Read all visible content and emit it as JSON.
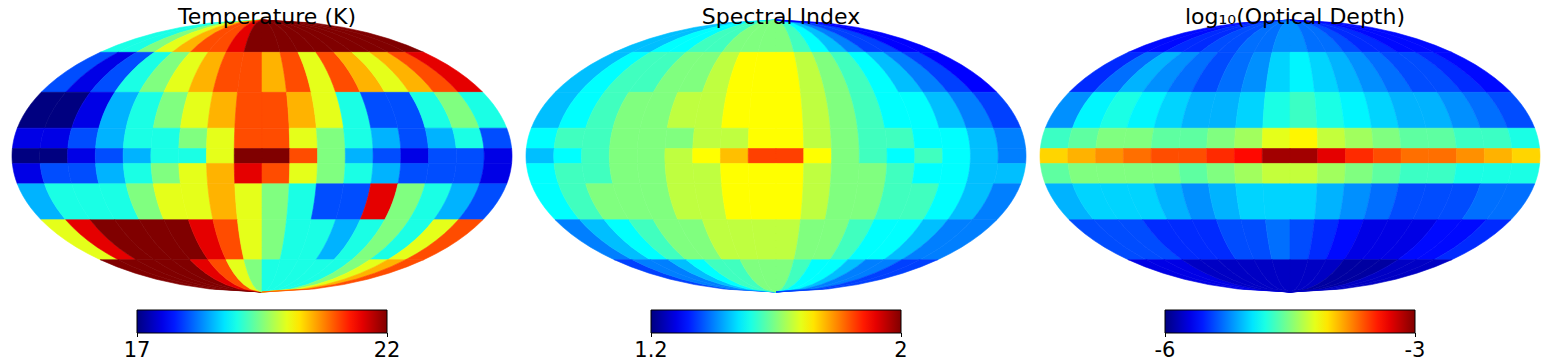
{
  "chart_data": [
    {
      "type": "heatmap",
      "title": "Temperature (K)",
      "lon_edges": [
        180,
        160,
        140,
        120,
        100,
        80,
        60,
        40,
        20,
        0,
        -20,
        -40,
        -60,
        -80,
        -100,
        -120,
        -140,
        -160,
        -180
      ],
      "lat_edges": [
        90,
        60,
        35,
        15,
        4,
        -4,
        -15,
        -35,
        -60,
        -90
      ],
      "cells": [
        [
          19,
          19,
          19.5,
          20,
          20.5,
          21,
          21,
          21.5,
          22,
          22,
          22,
          22,
          22,
          22,
          22,
          22,
          22,
          22
        ],
        [
          18,
          17.5,
          18,
          19,
          19.5,
          20,
          20.5,
          21,
          21,
          20.5,
          21,
          20,
          21,
          20.5,
          20,
          20.5,
          21,
          21.5
        ],
        [
          17,
          17,
          17.5,
          18.5,
          19,
          19.5,
          20,
          20.5,
          21,
          21,
          20.5,
          20,
          19,
          18,
          18,
          19,
          19.5,
          19
        ],
        [
          17.5,
          17.5,
          18,
          18.5,
          19,
          19,
          19.5,
          20,
          21,
          21,
          20,
          19.5,
          19,
          18.5,
          18,
          18.5,
          19,
          18
        ],
        [
          17,
          17,
          17.5,
          18,
          18.5,
          19,
          19,
          20,
          22,
          22,
          21,
          19.5,
          18.5,
          18,
          17.5,
          18,
          18,
          17.5
        ],
        [
          17.5,
          18,
          18,
          18.5,
          19,
          19.5,
          20,
          20.5,
          21.5,
          21,
          20,
          19.5,
          19,
          18.5,
          18,
          18,
          18,
          17.5
        ],
        [
          18.5,
          19,
          19,
          19,
          19.5,
          20,
          20,
          20.5,
          20,
          19.5,
          19,
          18,
          18,
          21.5,
          19.5,
          19,
          18.5,
          18
        ],
        [
          20,
          21.5,
          22,
          22,
          22,
          22,
          21.5,
          21,
          20,
          19.5,
          19,
          19,
          18.5,
          19,
          19.5,
          19,
          20,
          21
        ],
        [
          22,
          22,
          22,
          22,
          22,
          21.5,
          21,
          20,
          19.5,
          19,
          19,
          19,
          19,
          19,
          19.5,
          20,
          20.5,
          21
        ]
      ],
      "color_range": [
        17,
        22
      ],
      "color_ticks": [
        17,
        22
      ]
    },
    {
      "type": "heatmap",
      "title": "Spectral Index",
      "lon_edges": [
        180,
        160,
        140,
        120,
        100,
        80,
        60,
        40,
        20,
        0,
        -20,
        -40,
        -60,
        -80,
        -100,
        -120,
        -140,
        -160,
        -180
      ],
      "lat_edges": [
        90,
        60,
        35,
        15,
        4,
        -4,
        -15,
        -35,
        -60,
        -90
      ],
      "cells": [
        [
          1.45,
          1.45,
          1.5,
          1.5,
          1.55,
          1.55,
          1.6,
          1.6,
          1.6,
          1.6,
          1.55,
          1.5,
          1.45,
          1.4,
          1.35,
          1.35,
          1.3,
          1.3
        ],
        [
          1.45,
          1.5,
          1.55,
          1.55,
          1.6,
          1.6,
          1.65,
          1.7,
          1.7,
          1.7,
          1.65,
          1.6,
          1.55,
          1.5,
          1.45,
          1.4,
          1.35,
          1.3
        ],
        [
          1.45,
          1.5,
          1.55,
          1.6,
          1.6,
          1.65,
          1.65,
          1.7,
          1.7,
          1.7,
          1.65,
          1.6,
          1.55,
          1.5,
          1.5,
          1.45,
          1.4,
          1.35
        ],
        [
          1.5,
          1.55,
          1.55,
          1.6,
          1.6,
          1.6,
          1.65,
          1.65,
          1.7,
          1.7,
          1.65,
          1.6,
          1.55,
          1.55,
          1.5,
          1.5,
          1.45,
          1.4
        ],
        [
          1.45,
          1.5,
          1.55,
          1.6,
          1.6,
          1.65,
          1.7,
          1.75,
          1.85,
          1.85,
          1.7,
          1.6,
          1.55,
          1.5,
          1.55,
          1.5,
          1.45,
          1.4
        ],
        [
          1.5,
          1.55,
          1.55,
          1.6,
          1.6,
          1.65,
          1.65,
          1.7,
          1.7,
          1.7,
          1.65,
          1.6,
          1.6,
          1.55,
          1.5,
          1.5,
          1.45,
          1.45
        ],
        [
          1.5,
          1.55,
          1.6,
          1.6,
          1.6,
          1.65,
          1.65,
          1.7,
          1.7,
          1.7,
          1.65,
          1.6,
          1.6,
          1.55,
          1.55,
          1.5,
          1.45,
          1.4
        ],
        [
          1.4,
          1.45,
          1.5,
          1.55,
          1.6,
          1.6,
          1.65,
          1.65,
          1.65,
          1.65,
          1.6,
          1.6,
          1.55,
          1.5,
          1.5,
          1.45,
          1.4,
          1.4
        ],
        [
          1.35,
          1.4,
          1.4,
          1.45,
          1.5,
          1.55,
          1.55,
          1.6,
          1.6,
          1.6,
          1.55,
          1.5,
          1.5,
          1.45,
          1.4,
          1.4,
          1.35,
          1.35
        ]
      ],
      "color_range": [
        1.2,
        2
      ],
      "color_ticks": [
        1.2,
        2
      ]
    },
    {
      "type": "heatmap",
      "title": "log₁₀(Optical Depth)",
      "lon_edges": [
        180,
        160,
        140,
        120,
        100,
        80,
        60,
        40,
        20,
        0,
        -20,
        -40,
        -60,
        -80,
        -100,
        -120,
        -140,
        -160,
        -180
      ],
      "lat_edges": [
        90,
        60,
        35,
        15,
        4,
        -4,
        -15,
        -35,
        -60,
        -90
      ],
      "cells": [
        [
          -5.6,
          -5.6,
          -5.5,
          -5.5,
          -5.4,
          -5.4,
          -5.3,
          -5.3,
          -5.2,
          -5.2,
          -5.3,
          -5.3,
          -5.4,
          -5.5,
          -5.5,
          -5.6,
          -5.6,
          -5.6
        ],
        [
          -5.5,
          -5.3,
          -5.1,
          -5.2,
          -5.3,
          -5.4,
          -5.3,
          -5.2,
          -5.0,
          -4.9,
          -5.0,
          -5.1,
          -5.2,
          -5.3,
          -5.4,
          -5.4,
          -5.5,
          -5.6
        ],
        [
          -5.2,
          -4.9,
          -4.8,
          -4.9,
          -5.0,
          -5.1,
          -5.1,
          -5.0,
          -4.8,
          -4.7,
          -4.8,
          -4.9,
          -5.0,
          -5.1,
          -5.1,
          -5.2,
          -5.3,
          -5.4
        ],
        [
          -4.7,
          -4.6,
          -4.5,
          -4.5,
          -4.6,
          -4.6,
          -4.5,
          -4.4,
          -4.2,
          -4.1,
          -4.3,
          -4.4,
          -4.5,
          -4.6,
          -4.6,
          -4.7,
          -4.7,
          -4.8
        ],
        [
          -4.0,
          -3.9,
          -3.8,
          -3.7,
          -3.6,
          -3.6,
          -3.5,
          -3.4,
          -3.1,
          -3.1,
          -3.3,
          -3.5,
          -3.6,
          -3.7,
          -3.7,
          -3.8,
          -3.9,
          -4.0
        ],
        [
          -4.6,
          -4.5,
          -4.5,
          -4.5,
          -4.5,
          -4.6,
          -4.5,
          -4.4,
          -4.3,
          -4.3,
          -4.4,
          -4.5,
          -4.6,
          -4.7,
          -4.7,
          -4.8,
          -4.8,
          -4.8
        ],
        [
          -5.1,
          -5.0,
          -5.0,
          -5.0,
          -5.1,
          -5.2,
          -5.1,
          -5.0,
          -5.0,
          -5.0,
          -5.1,
          -5.2,
          -5.3,
          -5.4,
          -5.4,
          -5.4,
          -5.3,
          -5.3
        ],
        [
          -5.4,
          -5.4,
          -5.4,
          -5.5,
          -5.5,
          -5.5,
          -5.4,
          -5.4,
          -5.3,
          -5.4,
          -5.5,
          -5.6,
          -5.7,
          -5.7,
          -5.7,
          -5.6,
          -5.6,
          -5.5
        ],
        [
          -5.7,
          -5.7,
          -5.7,
          -5.8,
          -5.8,
          -5.8,
          -5.8,
          -5.8,
          -5.8,
          -5.8,
          -5.8,
          -5.8,
          -5.9,
          -5.9,
          -5.9,
          -5.8,
          -5.8,
          -5.8
        ]
      ],
      "color_range": [
        -6,
        -3
      ],
      "color_ticks": [
        -6,
        -3
      ]
    }
  ]
}
